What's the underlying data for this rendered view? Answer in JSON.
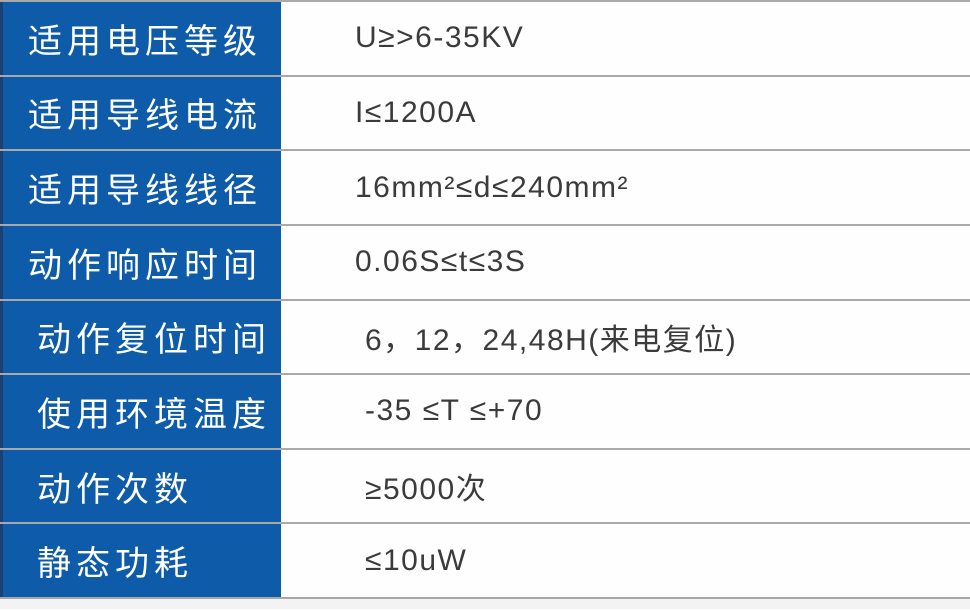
{
  "table": {
    "rows": [
      {
        "label": "适用电压等级",
        "value": "U≥>6-35KV"
      },
      {
        "label": "适用导线电流",
        "value": "I≤1200A"
      },
      {
        "label": "适用导线线径",
        "value": "16mm²≤d≤240mm²"
      },
      {
        "label": "动作响应时间",
        "value": "0.06S≤t≤3S"
      },
      {
        "label": "动作复位时间",
        "value": "6，12，24,48H(来电复位)"
      },
      {
        "label": "使用环境温度",
        "value": "-35 ≤T ≤+70"
      },
      {
        "label": "动作次数",
        "value": "≥5000次"
      },
      {
        "label": "静态功耗",
        "value": "≤10uW"
      }
    ],
    "colors": {
      "label_bg": "#0d5ba9",
      "label_text": "#ffffff",
      "label_left_edge": "#1c4070",
      "value_text": "#3b3b3b",
      "divider": "#a9a9a9",
      "bottom_strip": "#f3f3f3"
    }
  }
}
